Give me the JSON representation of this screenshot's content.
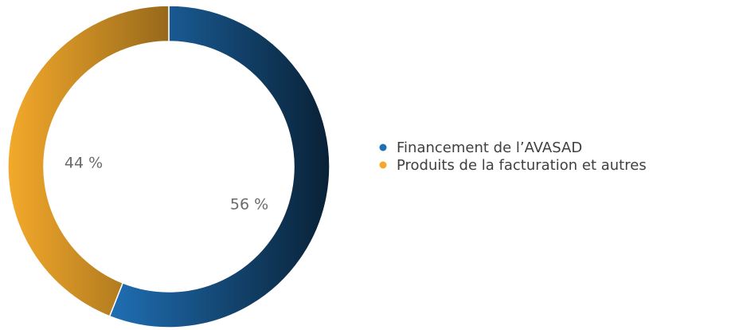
{
  "chart_data": {
    "type": "donut",
    "series": [
      {
        "name": "Financement de l’AVASAD",
        "color": "#1f6fb4",
        "values": [
          56
        ],
        "value_labels": [
          "56 %"
        ]
      },
      {
        "name": "Produits de la facturation et autres",
        "color": "#f4a92b",
        "values": [
          44
        ],
        "value_labels": [
          "44 %"
        ]
      }
    ]
  }
}
